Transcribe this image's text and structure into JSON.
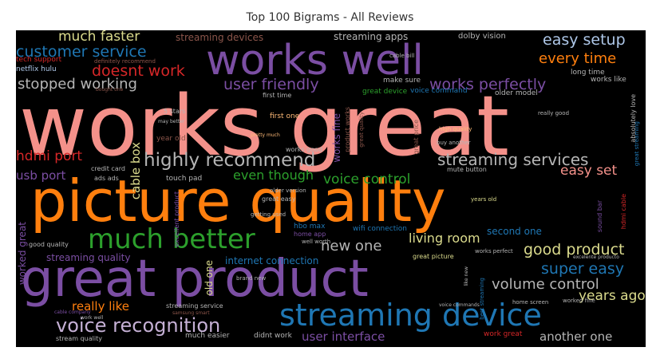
{
  "title": "Top 100 Bigrams - All Reviews",
  "palette": {
    "salmon": "#f4918a",
    "orange": "#ff7f0e",
    "purple": "#7b4ea3",
    "green": "#2ca02c",
    "blue": "#1f77b4",
    "gray": "#b5b5b5",
    "lightblue": "#aec7e8",
    "khaki": "#dbdb8d",
    "red": "#d62728",
    "brown": "#8c564b",
    "pink": "#e377c2",
    "olive": "#bcbd22",
    "peach": "#ffbb78",
    "lightpurple": "#c5b0d5"
  },
  "words": [
    {
      "text": "works great",
      "color": "salmon"
    },
    {
      "text": "picture quality",
      "color": "orange"
    },
    {
      "text": "great product",
      "color": "purple"
    },
    {
      "text": "works well",
      "color": "purple"
    },
    {
      "text": "much better",
      "color": "green"
    },
    {
      "text": "streaming device",
      "color": "blue"
    },
    {
      "text": "voice recognition",
      "color": "lightpurple"
    },
    {
      "text": "highly recommend",
      "color": "gray"
    },
    {
      "text": "customer service",
      "color": "blue"
    },
    {
      "text": "streaming services",
      "color": "gray"
    },
    {
      "text": "easy setup",
      "color": "lightblue"
    },
    {
      "text": "every time",
      "color": "orange"
    },
    {
      "text": "works perfectly",
      "color": "purple"
    },
    {
      "text": "user friendly",
      "color": "purple"
    },
    {
      "text": "stopped working",
      "color": "gray"
    },
    {
      "text": "doesnt work",
      "color": "red"
    },
    {
      "text": "much faster",
      "color": "khaki"
    },
    {
      "text": "super easy",
      "color": "blue"
    },
    {
      "text": "good product",
      "color": "khaki"
    },
    {
      "text": "living room",
      "color": "khaki"
    },
    {
      "text": "volume control",
      "color": "gray"
    },
    {
      "text": "new one",
      "color": "gray"
    },
    {
      "text": "easy set",
      "color": "salmon"
    },
    {
      "text": "voice control",
      "color": "green"
    },
    {
      "text": "even though",
      "color": "green"
    },
    {
      "text": "years ago",
      "color": "khaki"
    },
    {
      "text": "user interface",
      "color": "purple"
    },
    {
      "text": "another one",
      "color": "gray"
    },
    {
      "text": "really like",
      "color": "orange"
    },
    {
      "text": "hdmi port",
      "color": "red"
    },
    {
      "text": "cable box",
      "color": "khaki"
    },
    {
      "text": "usb port",
      "color": "purple"
    },
    {
      "text": "streaming quality",
      "color": "purple"
    },
    {
      "text": "internet connection",
      "color": "blue"
    },
    {
      "text": "streaming devices",
      "color": "brown"
    },
    {
      "text": "streaming apps",
      "color": "gray"
    },
    {
      "text": "works fine",
      "color": "purple"
    },
    {
      "text": "second one",
      "color": "blue"
    },
    {
      "text": "old one",
      "color": "khaki"
    },
    {
      "text": "worked great",
      "color": "purple"
    },
    {
      "text": "dolby vision",
      "color": "gray"
    },
    {
      "text": "tech support",
      "color": "red"
    },
    {
      "text": "netflix hulu",
      "color": "lightblue"
    },
    {
      "text": "definitely recommend",
      "color": "brown"
    },
    {
      "text": "cable bill",
      "color": "gray"
    },
    {
      "text": "make sure",
      "color": "gray"
    },
    {
      "text": "long time",
      "color": "gray"
    },
    {
      "text": "works like",
      "color": "gray"
    },
    {
      "text": "great device",
      "color": "green"
    },
    {
      "text": "voice command",
      "color": "blue"
    },
    {
      "text": "older model",
      "color": "gray"
    },
    {
      "text": "bought one",
      "color": "brown"
    },
    {
      "text": "first time",
      "color": "gray"
    },
    {
      "text": "5 stars",
      "color": "gray"
    },
    {
      "text": "may better",
      "color": "gray"
    },
    {
      "text": "first one",
      "color": "peach"
    },
    {
      "text": "product works",
      "color": "brown"
    },
    {
      "text": "great quality",
      "color": "brown"
    },
    {
      "text": "really good",
      "color": "gray"
    },
    {
      "text": "high quality",
      "color": "peach"
    },
    {
      "text": "great price",
      "color": "brown"
    },
    {
      "text": "year old",
      "color": "brown"
    },
    {
      "text": "pretty much",
      "color": "peach"
    },
    {
      "text": "buy another",
      "color": "gray"
    },
    {
      "text": "works good",
      "color": "gray"
    },
    {
      "text": "great streaming",
      "color": "blue"
    },
    {
      "text": "absolutely love",
      "color": "gray"
    },
    {
      "text": "credit card",
      "color": "gray"
    },
    {
      "text": "mute button",
      "color": "gray"
    },
    {
      "text": "ads ads",
      "color": "gray"
    },
    {
      "text": "touch pad",
      "color": "gray"
    },
    {
      "text": "older version",
      "color": "gray"
    },
    {
      "text": "great easy",
      "color": "gray"
    },
    {
      "text": "years old",
      "color": "khaki"
    },
    {
      "text": "sound bar",
      "color": "purple"
    },
    {
      "text": "hdmi cable",
      "color": "red"
    },
    {
      "text": "excellent product",
      "color": "purple"
    },
    {
      "text": "getting used",
      "color": "gray"
    },
    {
      "text": "hbo max",
      "color": "blue"
    },
    {
      "text": "home app",
      "color": "purple"
    },
    {
      "text": "well worth",
      "color": "gray"
    },
    {
      "text": "wifi connection",
      "color": "blue"
    },
    {
      "text": "good quality",
      "color": "gray"
    },
    {
      "text": "great picture",
      "color": "khaki"
    },
    {
      "text": "works perfect",
      "color": "gray"
    },
    {
      "text": "excelente producto",
      "color": "gray"
    },
    {
      "text": "brand new",
      "color": "gray"
    },
    {
      "text": "best streaming",
      "color": "blue"
    },
    {
      "text": "like new",
      "color": "gray"
    },
    {
      "text": "voice commands",
      "color": "gray"
    },
    {
      "text": "home screen",
      "color": "gray"
    },
    {
      "text": "worked fine",
      "color": "gray"
    },
    {
      "text": "cable company",
      "color": "purple"
    },
    {
      "text": "streaming service",
      "color": "gray"
    },
    {
      "text": "work well",
      "color": "gray"
    },
    {
      "text": "samsung smart",
      "color": "brown"
    },
    {
      "text": "stream quality",
      "color": "gray"
    },
    {
      "text": "much easier",
      "color": "gray"
    },
    {
      "text": "didnt work",
      "color": "gray"
    },
    {
      "text": "work great",
      "color": "red"
    }
  ]
}
